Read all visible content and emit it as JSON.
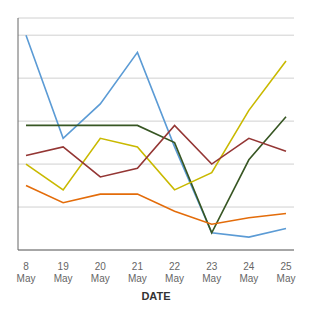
{
  "chart_data": {
    "type": "line",
    "x_label": "DATE",
    "categories": [
      "8\nMay",
      "19\nMay",
      "20\nMay",
      "21\nMay",
      "22\nMay",
      "23\nMay",
      "24\nMay",
      "25\nMay"
    ],
    "series": [
      {
        "color": "#5b9bd5",
        "values": [
          100,
          52,
          68,
          92,
          48,
          8,
          6,
          10
        ]
      },
      {
        "color": "#375623",
        "values": [
          58,
          58,
          58,
          58,
          50,
          8,
          42,
          62
        ]
      },
      {
        "color": "#c9b900",
        "values": [
          40,
          28,
          52,
          48,
          28,
          36,
          65,
          88
        ]
      },
      {
        "color": "#943634",
        "values": [
          44,
          48,
          34,
          38,
          58,
          40,
          52,
          46
        ]
      },
      {
        "color": "#e36c0a",
        "values": [
          30,
          22,
          26,
          26,
          18,
          12,
          15,
          17
        ]
      }
    ],
    "ylim": [
      0,
      108
    ],
    "yticks": [
      0,
      20,
      40,
      60,
      80,
      100
    ],
    "grid": true,
    "tick_labels": "x"
  }
}
